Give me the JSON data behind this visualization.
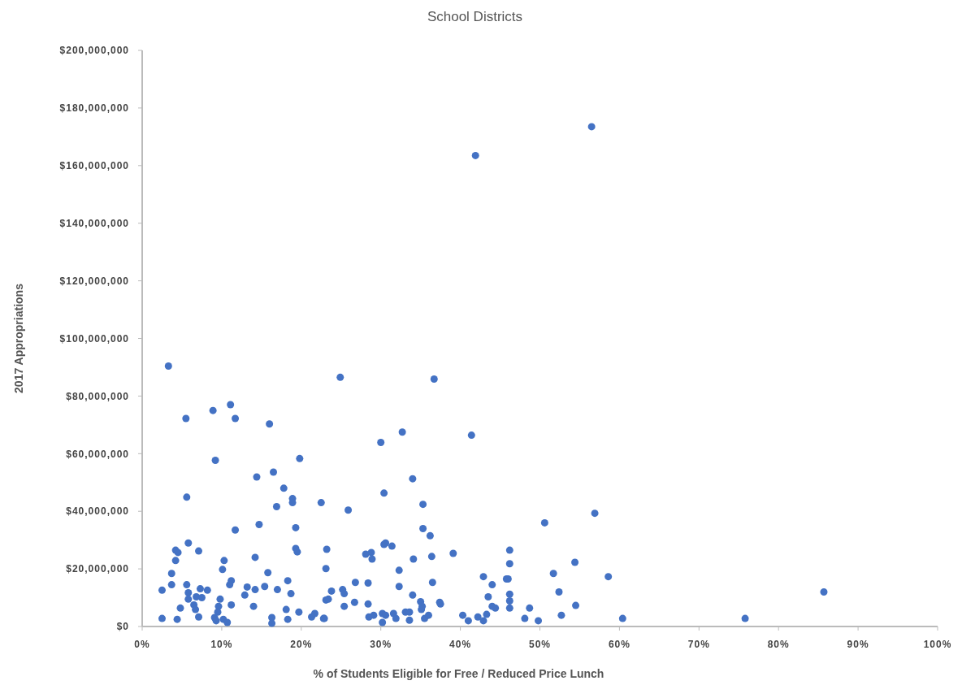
{
  "chart_data": {
    "type": "scatter",
    "title": "School Districts",
    "xlabel": "% of Students  Eligible for Free / Reduced Price Lunch",
    "ylabel": "2017 Appropriations",
    "xlim": [
      0,
      100
    ],
    "xticks": [
      {
        "value": 0,
        "label": "0%"
      },
      {
        "value": 10,
        "label": "10%"
      },
      {
        "value": 20,
        "label": "20%"
      },
      {
        "value": 30,
        "label": "30%"
      },
      {
        "value": 40,
        "label": "40%"
      },
      {
        "value": 50,
        "label": "50%"
      },
      {
        "value": 60,
        "label": "60%"
      },
      {
        "value": 70,
        "label": "70%"
      },
      {
        "value": 80,
        "label": "80%"
      },
      {
        "value": 90,
        "label": "90%"
      },
      {
        "value": 100,
        "label": "100%"
      }
    ],
    "ylim": [
      0,
      200000000
    ],
    "yticks": [
      {
        "value": 0,
        "label": "$0"
      },
      {
        "value": 20000000,
        "label": "$20,000,000"
      },
      {
        "value": 40000000,
        "label": "$40,000,000"
      },
      {
        "value": 60000000,
        "label": "$60,000,000"
      },
      {
        "value": 80000000,
        "label": "$80,000,000"
      },
      {
        "value": 100000000,
        "label": "$100,000,000"
      },
      {
        "value": 120000000,
        "label": "$120,000,000"
      },
      {
        "value": 140000000,
        "label": "$140,000,000"
      },
      {
        "value": 160000000,
        "label": "$160,000,000"
      },
      {
        "value": 180000000,
        "label": "$180,000,000"
      },
      {
        "value": 200000000,
        "label": "$200,000,000"
      }
    ],
    "grid": false,
    "marker": "circle",
    "series": [
      {
        "color": "#4472c4",
        "x": [
          3.3,
          5.5,
          8.9,
          11.1,
          11.7,
          16.0,
          9.2,
          19.8,
          14.4,
          16.5,
          17.8,
          18.9,
          18.9,
          16.9,
          22.5,
          5.6,
          11.7,
          14.7,
          19.3,
          5.8,
          4.2,
          4.5,
          7.1,
          19.3,
          19.5,
          4.2,
          10.3,
          10.1,
          14.2,
          3.7,
          15.8,
          3.7,
          5.6,
          11.2,
          11.0,
          18.3,
          2.5,
          7.3,
          8.2,
          5.8,
          6.8,
          7.5,
          5.8,
          13.2,
          14.2,
          15.4,
          17.0,
          12.9,
          18.7,
          9.8,
          4.8,
          6.5,
          6.7,
          9.6,
          9.5,
          11.2,
          14.0,
          18.1,
          19.7,
          2.5,
          4.4,
          7.1,
          9.1,
          9.3,
          10.2,
          10.7,
          16.3,
          16.3,
          18.3,
          21.3,
          21.7,
          22.8,
          24.9,
          36.7,
          32.7,
          30.0,
          41.4,
          34.0,
          30.4,
          25.9,
          35.3,
          35.3,
          36.2,
          23.2,
          30.4,
          30.6,
          31.4,
          28.1,
          28.8,
          28.9,
          34.1,
          36.4,
          39.1,
          23.1,
          32.3,
          42.9,
          26.8,
          28.4,
          32.3,
          36.5,
          44.0,
          23.8,
          25.2,
          25.4,
          23.1,
          23.4,
          34.0,
          43.5,
          25.4,
          26.7,
          28.4,
          35.0,
          35.2,
          37.4,
          37.5,
          35.1,
          22.9,
          28.5,
          29.1,
          30.2,
          30.2,
          30.6,
          31.6,
          31.9,
          33.1,
          33.6,
          33.6,
          35.5,
          36.0,
          40.3,
          41.0,
          42.2,
          42.9,
          43.3,
          44.0,
          44.4,
          46.2,
          46.2,
          45.8,
          46.0,
          46.2,
          46.2,
          46.2,
          48.1,
          48.7,
          49.8,
          50.6,
          51.7,
          52.4,
          52.7,
          54.4,
          54.5,
          56.9,
          58.6,
          60.4,
          75.8,
          85.7,
          41.9,
          56.5
        ],
        "values": [
          90400000,
          72200000,
          75000000,
          77000000,
          72200000,
          70300000,
          57700000,
          58300000,
          51900000,
          53600000,
          48000000,
          44400000,
          43000000,
          41600000,
          43000000,
          44900000,
          33500000,
          35400000,
          34300000,
          29000000,
          26500000,
          25700000,
          26200000,
          27100000,
          25900000,
          22900000,
          22900000,
          19800000,
          24000000,
          18400000,
          18700000,
          14500000,
          14500000,
          15900000,
          14500000,
          15900000,
          12600000,
          13100000,
          12600000,
          11700000,
          10300000,
          10000000,
          9500000,
          13700000,
          12800000,
          13900000,
          12800000,
          10900000,
          11400000,
          9500000,
          6400000,
          7500000,
          5900000,
          7000000,
          5000000,
          7500000,
          7000000,
          5900000,
          5000000,
          2800000,
          2500000,
          3300000,
          3100000,
          2000000,
          2500000,
          1400000,
          3100000,
          1100000,
          2500000,
          3300000,
          4500000,
          2800000,
          86500000,
          85900000,
          67500000,
          63900000,
          66400000,
          51300000,
          46300000,
          40400000,
          42400000,
          34000000,
          31500000,
          26800000,
          28500000,
          29000000,
          27900000,
          25100000,
          25700000,
          23400000,
          23400000,
          24300000,
          25400000,
          20100000,
          19500000,
          17300000,
          15300000,
          15100000,
          13900000,
          15300000,
          14500000,
          12300000,
          12800000,
          11400000,
          9200000,
          9500000,
          10900000,
          10300000,
          7000000,
          8400000,
          7800000,
          8600000,
          7000000,
          8400000,
          7800000,
          5900000,
          2800000,
          3300000,
          3900000,
          4500000,
          1400000,
          3900000,
          4500000,
          2800000,
          5000000,
          5000000,
          2200000,
          2800000,
          3900000,
          3900000,
          2000000,
          3300000,
          2000000,
          4200000,
          7000000,
          6400000,
          26500000,
          21800000,
          16500000,
          16500000,
          11200000,
          8900000,
          6400000,
          2800000,
          6400000,
          2000000,
          36000000,
          18400000,
          12000000,
          3900000,
          22300000,
          7300000,
          39300000,
          17300000,
          2800000,
          2800000,
          12000000,
          163500000,
          173500000
        ]
      }
    ]
  }
}
